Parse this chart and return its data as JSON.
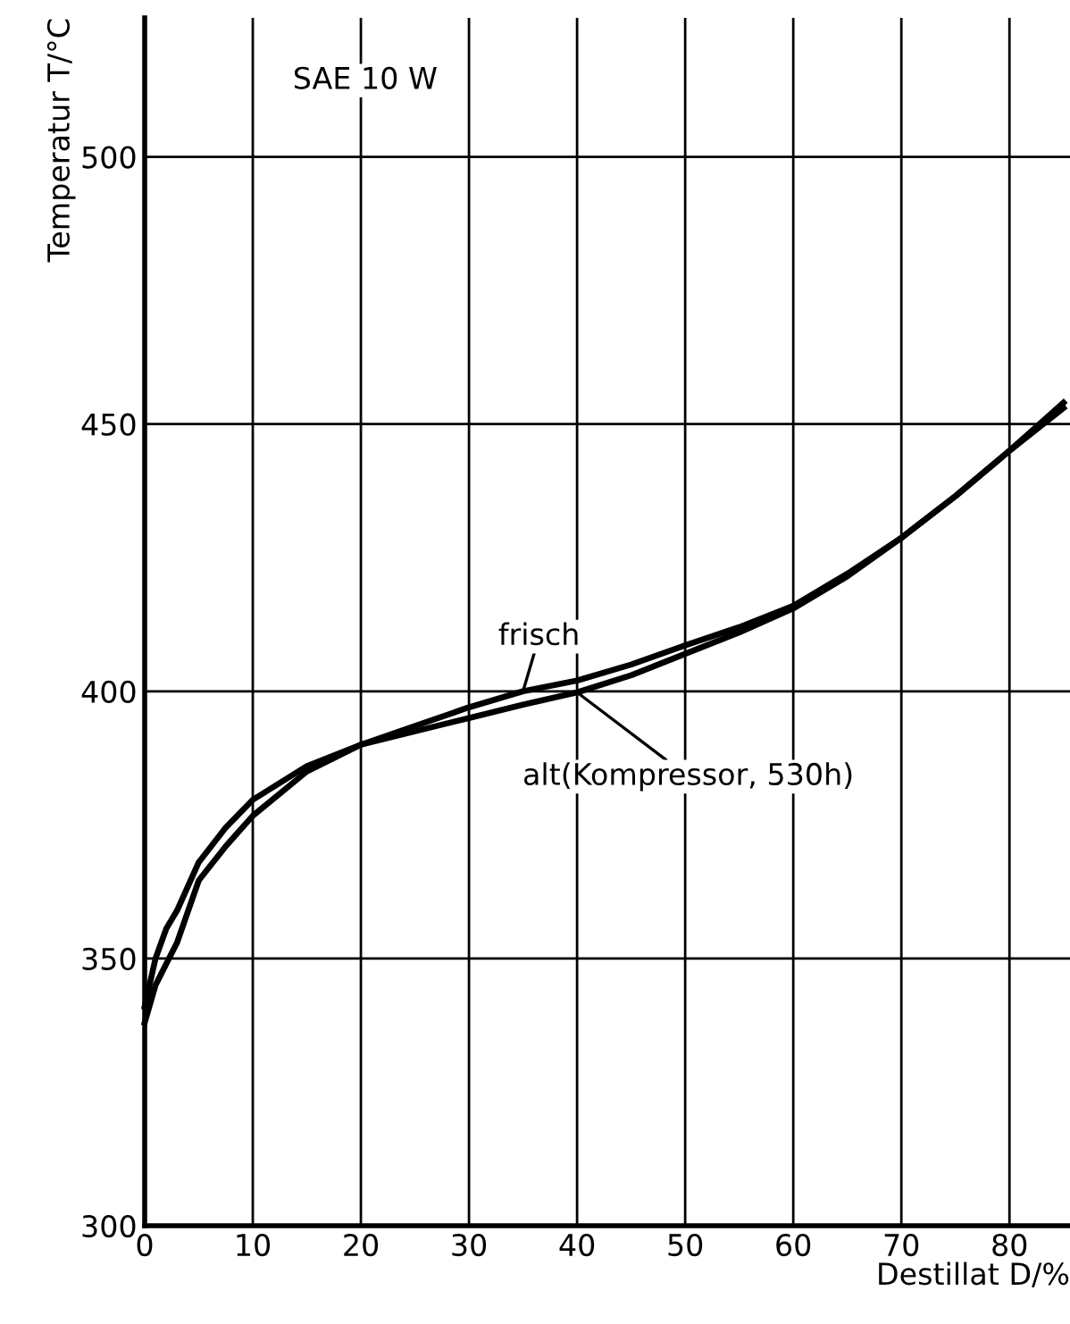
{
  "chart_data": {
    "type": "line",
    "title": "SAE 10 W",
    "xlabel": "Destillat D/%",
    "ylabel": "Temperatur T/°C",
    "x": [
      0,
      1,
      2,
      3,
      5,
      7.5,
      10,
      15,
      20,
      25,
      30,
      35,
      40,
      45,
      50,
      55,
      60,
      65,
      70,
      75,
      80,
      85
    ],
    "series": [
      {
        "name": "frisch",
        "color": "#000000",
        "values": [
          338,
          345,
          349,
          353,
          364.6,
          371,
          376.7,
          385,
          390,
          393.5,
          397,
          400,
          402,
          405,
          408.6,
          412,
          416,
          422,
          428.7,
          436.5,
          445,
          454
        ]
      },
      {
        "name": "alt(Kompressor, 530h)",
        "color": "#000000",
        "values": [
          341,
          350,
          355.6,
          359,
          368,
          374.5,
          379.7,
          386,
          390,
          392.5,
          395,
          397.5,
          399.8,
          403,
          407,
          411,
          415.5,
          421.5,
          428.7,
          436.5,
          445,
          453
        ]
      }
    ],
    "xlim": [
      0,
      85.6
    ],
    "ylim": [
      300,
      526
    ],
    "xticks": [
      0,
      10,
      20,
      30,
      40,
      50,
      60,
      70,
      80
    ],
    "yticks": [
      300,
      350,
      400,
      450,
      500
    ],
    "grid": true,
    "marker": "none",
    "line_style": "solid"
  }
}
